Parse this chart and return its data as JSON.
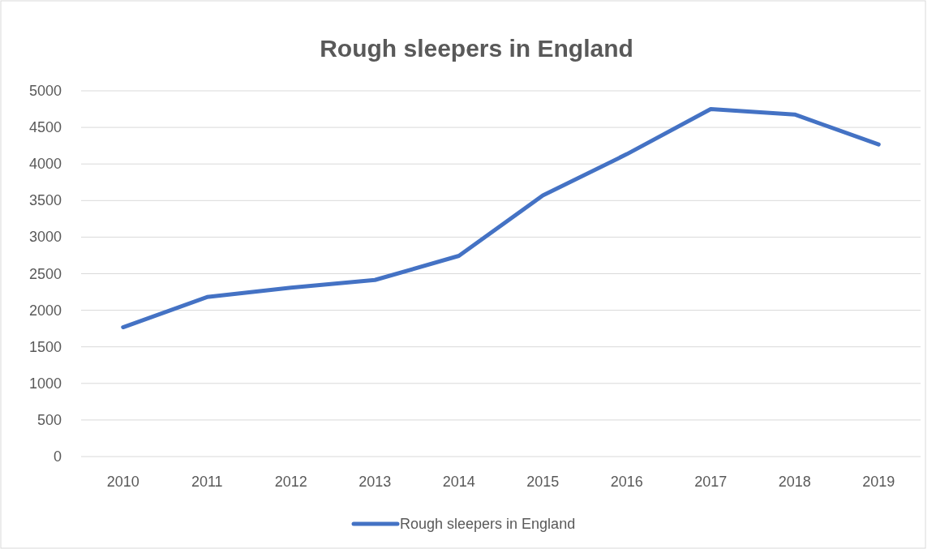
{
  "chart_data": {
    "type": "line",
    "title": "Rough sleepers in England",
    "categories": [
      "2010",
      "2011",
      "2012",
      "2013",
      "2014",
      "2015",
      "2016",
      "2017",
      "2018",
      "2019"
    ],
    "series": [
      {
        "name": "Rough sleepers in England",
        "color": "#4472c4",
        "values": [
          1768,
          2181,
          2309,
          2414,
          2744,
          3569,
          4134,
          4751,
          4677,
          4266
        ]
      }
    ],
    "ylim": [
      0,
      5000
    ],
    "yticks": [
      0,
      500,
      1000,
      1500,
      2000,
      2500,
      3000,
      3500,
      4000,
      4500,
      5000
    ],
    "grid": "y",
    "legend": "bottom",
    "marker": "none",
    "line_style": "solid"
  }
}
